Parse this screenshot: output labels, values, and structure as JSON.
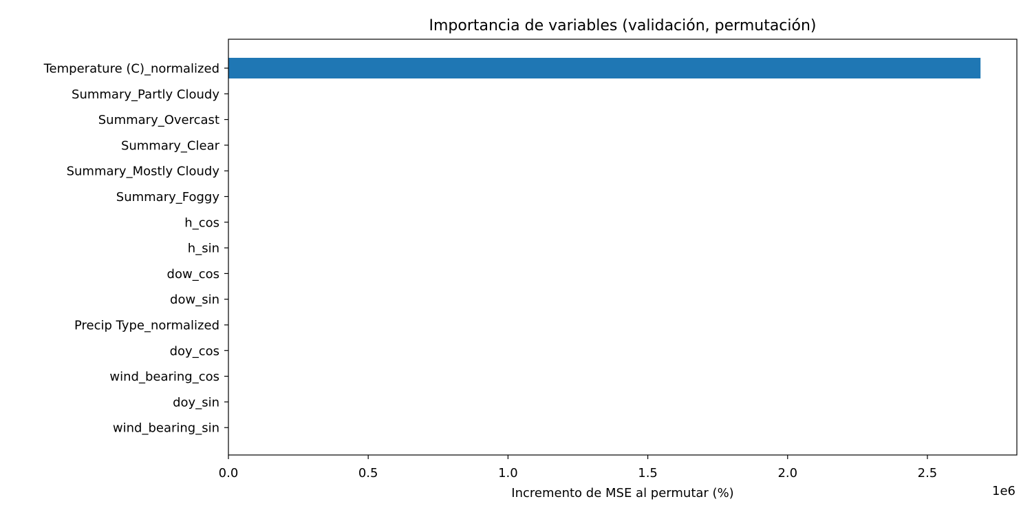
{
  "chart_data": {
    "type": "bar",
    "orientation": "horizontal",
    "title": "Importancia de variables (validación, permutación)",
    "xlabel": "Incremento de MSE al permutar (%)",
    "ylabel": "",
    "x_offset_text": "1e6",
    "x_tick_labels": [
      "0.0",
      "0.5",
      "1.0",
      "1.5",
      "2.0",
      "2.5"
    ],
    "x_tick_values": [
      0,
      500000,
      1000000,
      1500000,
      2000000,
      2500000
    ],
    "xlim": [
      0,
      2820000
    ],
    "grid": false,
    "categories": [
      "Temperature (C)_normalized",
      "Summary_Partly Cloudy",
      "Summary_Overcast",
      "Summary_Clear",
      "Summary_Mostly Cloudy",
      "Summary_Foggy",
      "h_cos",
      "h_sin",
      "dow_cos",
      "dow_sin",
      "Precip Type_normalized",
      "doy_cos",
      "wind_bearing_cos",
      "doy_sin",
      "wind_bearing_sin"
    ],
    "values": [
      2690000,
      0,
      0,
      0,
      0,
      0,
      0,
      0,
      0,
      0,
      0,
      0,
      0,
      0,
      0
    ],
    "bar_color": "#1f77b4"
  }
}
